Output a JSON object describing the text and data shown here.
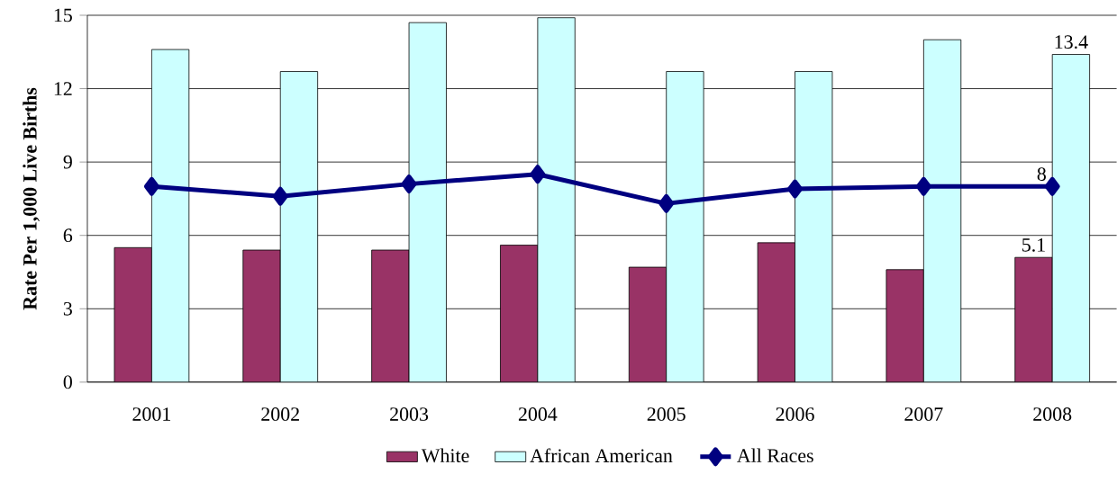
{
  "chart_data": {
    "type": "bar",
    "ylabel": "Rate Per 1,000 Live Births",
    "categories": [
      "2001",
      "2002",
      "2003",
      "2004",
      "2005",
      "2006",
      "2007",
      "2008"
    ],
    "series": [
      {
        "name": "White",
        "color": "#993366",
        "values": [
          5.5,
          5.4,
          5.4,
          5.6,
          4.7,
          5.7,
          4.6,
          5.1
        ],
        "value_labels": [
          null,
          null,
          null,
          null,
          null,
          null,
          null,
          "5.1"
        ]
      },
      {
        "name": "African American",
        "color": "#ccffff",
        "values": [
          13.6,
          12.7,
          14.7,
          14.9,
          12.7,
          12.7,
          14.0,
          13.4
        ],
        "value_labels": [
          null,
          null,
          null,
          null,
          null,
          null,
          null,
          "13.4"
        ]
      },
      {
        "name": "All Races",
        "type": "line",
        "color": "#000080",
        "marker": "diamond",
        "values": [
          8.0,
          7.6,
          8.1,
          8.5,
          7.3,
          7.9,
          8.0,
          8.0
        ],
        "value_labels": [
          null,
          null,
          null,
          null,
          null,
          null,
          null,
          "8"
        ]
      }
    ],
    "ylim": [
      0,
      15
    ],
    "yticks": [
      0,
      3,
      6,
      9,
      12,
      15
    ],
    "grid": "y",
    "legend": "bottom"
  }
}
